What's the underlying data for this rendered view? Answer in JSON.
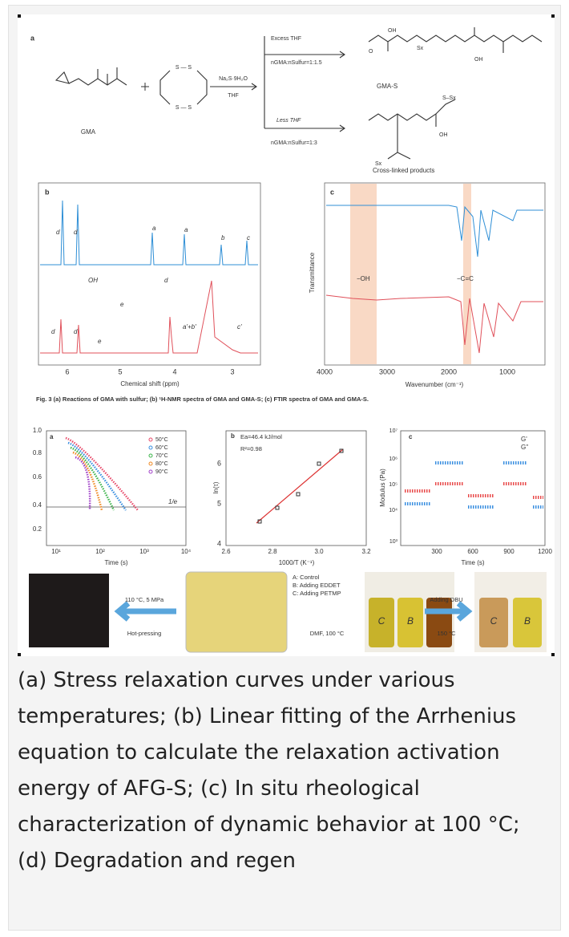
{
  "figure": {
    "top": {
      "panel_a": {
        "label": "a",
        "reactant": "GMA",
        "reagent": "Na₂S·9H₂O",
        "solvent": "THF",
        "ring_atoms": [
          "S — S",
          "S — S"
        ],
        "upper": {
          "condition": "Excess THF",
          "ratio": "nGMA:nSulfur=1:1.5",
          "product": "GMA-S",
          "atoms": [
            "OH",
            "OH",
            "O",
            "Sx"
          ]
        },
        "lower": {
          "condition": "Less THF",
          "ratio": "nGMA:nSulfur=1:3",
          "product": "Cross-linked products",
          "atoms": [
            "OH",
            "S–Sx",
            "Sx"
          ]
        }
      },
      "panel_b": {
        "label": "b",
        "x_label": "Chemical shift (ppm)",
        "x_ticks": [
          "6",
          "5",
          "4",
          "3"
        ],
        "gma_peaks": [
          "d",
          "d",
          "a",
          "a",
          "b",
          "c"
        ],
        "gma_s_peaks": [
          "d",
          "d",
          "e",
          "a'+b'",
          "c'"
        ],
        "gma_s_atoms": [
          "OH",
          "e",
          "d"
        ]
      },
      "panel_c": {
        "label": "c",
        "y_label": "Transmittance",
        "x_label": "Wavenumber (cm⁻¹)",
        "x_ticks": [
          "4000",
          "3000",
          "2000",
          "1000"
        ],
        "bands": [
          "−OH",
          "−C=C"
        ]
      },
      "caption": "Fig. 3  (a) Reactions of GMA with sulfur; (b) ¹H-NMR spectra of GMA and GMA-S; (c) FTIR spectra of GMA and GMA-S."
    },
    "bottom": {
      "stress": {
        "label": "a",
        "y_ticks": [
          "1.0",
          "0.8",
          "0.6",
          "0.4",
          "0.2"
        ],
        "x_ticks": [
          "10¹",
          "10²",
          "10³",
          "10⁴"
        ],
        "x_label": "Time (s)",
        "marker": "1/e",
        "legend": [
          "50°C",
          "60°C",
          "70°C",
          "80°C",
          "90°C"
        ],
        "colors": [
          "#e84a6a",
          "#3a8fe0",
          "#3cb44b",
          "#f08a24",
          "#a040c8"
        ]
      },
      "arrhenius": {
        "label": "b",
        "energy": "Ea=46.4 kJ/mol",
        "r2": "R²=0.98",
        "y_label": "ln(τ)",
        "y_ticks": [
          "6",
          "5",
          "4"
        ],
        "x_ticks": [
          "2.6",
          "2.8",
          "3.0",
          "3.2"
        ],
        "x_label": "1000/T (K⁻¹)"
      },
      "rheology": {
        "label": "c",
        "y_label": "Modulus (Pa)",
        "y_ticks": [
          "10⁷",
          "10⁶",
          "10⁵",
          "10⁴",
          "10³"
        ],
        "x_ticks": [
          "300",
          "600",
          "900",
          "1200"
        ],
        "x_label": "Time (s)",
        "legend": [
          "G'",
          "G''"
        ],
        "colors": [
          "#3a8fe0",
          "#e84a4a"
        ]
      },
      "process": {
        "samples": [
          "A: Control",
          "B: Adding EDDET",
          "C: Adding PETMP"
        ],
        "press_condition": "110 °C, 5 MPa",
        "press_label": "Hot-pressing",
        "dissolve": "DMF, 100 °C",
        "degrade": "Adding DBU",
        "degrade_temp": "150 °C",
        "vial_letters": [
          "C",
          "B",
          "C",
          "B"
        ]
      }
    }
  },
  "caption": "(a) Stress relaxation curves under various temperatures; (b) Linear fitting of the Arrhenius equation to calculate the relaxation activation energy of AFG-S; (c) In situ rheological characterization of dynamic behavior at 100 °C; (d) Degradation and regen"
}
